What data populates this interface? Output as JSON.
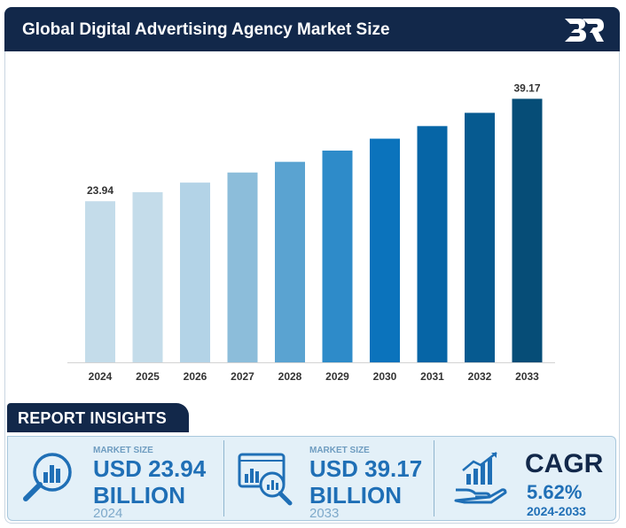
{
  "header": {
    "title": "Global Digital Advertising Agency Market Size"
  },
  "logo": {
    "icon": "br-logo-icon"
  },
  "chart_data": {
    "type": "bar",
    "categories": [
      "2024",
      "2025",
      "2026",
      "2027",
      "2028",
      "2029",
      "2030",
      "2031",
      "2032",
      "2033"
    ],
    "values": [
      23.94,
      25.29,
      26.71,
      28.21,
      29.8,
      31.47,
      33.24,
      35.11,
      37.08,
      39.17
    ],
    "data_labels": {
      "0": "23.94",
      "9": "39.17"
    },
    "colors": [
      "#c4dcea",
      "#c4dcea",
      "#b3d3e7",
      "#8cbdda",
      "#5aa3d1",
      "#2e8bc9",
      "#0b73bc",
      "#0665a6",
      "#065a90",
      "#064d77"
    ],
    "title": "",
    "xlabel": "",
    "ylabel": "",
    "ylim": [
      0,
      42
    ],
    "grid": false,
    "legend": "none"
  },
  "insights": {
    "tag": "REPORT INSIGHTS",
    "card1": {
      "label": "MARKET SIZE",
      "value_line1": "USD 23.94",
      "value_line2": "BILLION",
      "year": "2024",
      "icon": "magnifier-chart-icon"
    },
    "card2": {
      "label": "MARKET SIZE",
      "value_line1": "USD 39.17",
      "value_line2": "BILLION",
      "year": "2033",
      "icon": "monitor-analysis-icon"
    },
    "card3": {
      "title": "CAGR",
      "value": "5.62%",
      "period": "2024-2033",
      "icon": "growth-hand-icon"
    }
  }
}
